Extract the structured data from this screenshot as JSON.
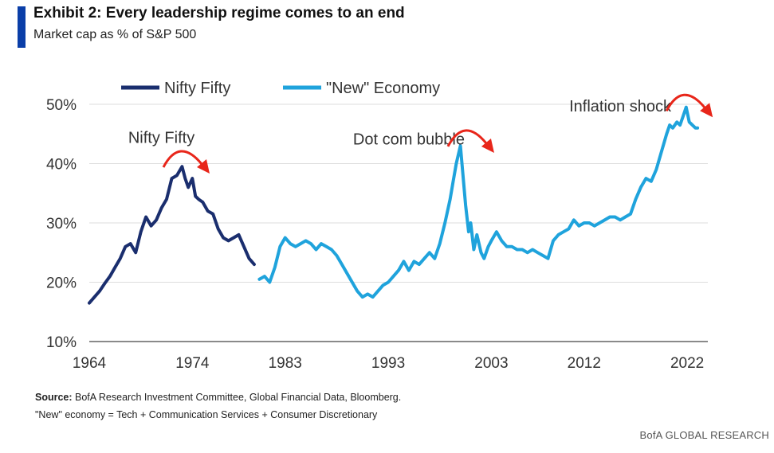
{
  "header": {
    "title": "Exhibit 2:  Every leadership regime comes to an end",
    "subtitle": "Market cap as % of S&P 500"
  },
  "footer": {
    "source_label": "Source:",
    "source_text": " BofA Research Investment Committee, Global Financial Data, Bloomberg.",
    "note": "\"New\" economy = Tech + Communication Services + Consumer Discretionary",
    "brand": "BofA GLOBAL RESEARCH"
  },
  "colors": {
    "nifty": "#1a2e6e",
    "new_economy": "#1fa3dc",
    "arrow": "#e8261a",
    "grid": "#dddddd",
    "accent": "#0a3ea8"
  },
  "chart_data": {
    "type": "line",
    "title": "Every leadership regime comes to an end",
    "ylabel": "Market cap as % of S&P 500",
    "ylim": [
      10,
      50
    ],
    "xlim": [
      1964,
      2024
    ],
    "yticks": [
      10,
      20,
      30,
      40,
      50
    ],
    "ytick_labels": [
      "10%",
      "20%",
      "30%",
      "40%",
      "50%"
    ],
    "xticks": [
      1964,
      1974,
      1983,
      1993,
      2003,
      2012,
      2022
    ],
    "xtick_labels": [
      "1964",
      "1974",
      "1983",
      "1993",
      "2003",
      "2012",
      "2022"
    ],
    "grid": "horizontal",
    "legend": {
      "placement": "top-left"
    },
    "series": [
      {
        "name": "Nifty Fifty",
        "color": "#1a2e6e",
        "x": [
          1964.0,
          1964.5,
          1965.0,
          1965.5,
          1966.0,
          1966.5,
          1967.0,
          1967.5,
          1968.0,
          1968.5,
          1969.0,
          1969.5,
          1970.0,
          1970.5,
          1971.0,
          1971.5,
          1972.0,
          1972.5,
          1973.0,
          1973.3,
          1973.6,
          1974.0,
          1974.3,
          1974.6,
          1975.0,
          1975.5,
          1976.0,
          1976.5,
          1977.0,
          1977.5,
          1978.0,
          1978.5,
          1979.0,
          1979.5,
          1980.0
        ],
        "y": [
          16.5,
          17.5,
          18.5,
          19.8,
          21.0,
          22.5,
          24.0,
          26.0,
          26.5,
          25.0,
          28.5,
          31.0,
          29.5,
          30.5,
          32.5,
          34.0,
          37.5,
          38.0,
          39.5,
          37.5,
          36.0,
          37.5,
          34.5,
          34.0,
          33.5,
          32.0,
          31.5,
          29.0,
          27.5,
          27.0,
          27.5,
          28.0,
          26.0,
          24.0,
          23.0
        ]
      },
      {
        "name": "\"New\" Economy",
        "color": "#1fa3dc",
        "x": [
          1980.5,
          1981.0,
          1981.5,
          1982.0,
          1982.5,
          1983.0,
          1983.5,
          1984.0,
          1984.5,
          1985.0,
          1985.5,
          1986.0,
          1986.5,
          1987.0,
          1987.5,
          1988.0,
          1988.5,
          1989.0,
          1989.5,
          1990.0,
          1990.5,
          1991.0,
          1991.5,
          1992.0,
          1992.5,
          1993.0,
          1993.5,
          1994.0,
          1994.5,
          1995.0,
          1995.5,
          1996.0,
          1996.5,
          1997.0,
          1997.5,
          1998.0,
          1998.5,
          1999.0,
          1999.3,
          1999.6,
          2000.0,
          2000.2,
          2000.5,
          2000.8,
          2001.0,
          2001.3,
          2001.6,
          2002.0,
          2002.3,
          2002.7,
          2003.0,
          2003.5,
          2004.0,
          2004.5,
          2005.0,
          2005.5,
          2006.0,
          2006.5,
          2007.0,
          2007.5,
          2008.0,
          2008.5,
          2009.0,
          2009.5,
          2010.0,
          2010.5,
          2011.0,
          2011.5,
          2012.0,
          2012.5,
          2013.0,
          2013.5,
          2014.0,
          2014.5,
          2015.0,
          2015.5,
          2016.0,
          2016.5,
          2017.0,
          2017.5,
          2018.0,
          2018.5,
          2019.0,
          2019.5,
          2020.0,
          2020.3,
          2020.6,
          2021.0,
          2021.3,
          2021.6,
          2021.9,
          2022.2,
          2022.5,
          2022.8,
          2023.0
        ],
        "y": [
          20.5,
          21.0,
          20.0,
          22.5,
          26.0,
          27.5,
          26.5,
          26.0,
          26.5,
          27.0,
          26.5,
          25.5,
          26.5,
          26.0,
          25.5,
          24.5,
          23.0,
          21.5,
          20.0,
          18.5,
          17.5,
          18.0,
          17.5,
          18.5,
          19.5,
          20.0,
          21.0,
          22.0,
          23.5,
          22.0,
          23.5,
          23.0,
          24.0,
          25.0,
          24.0,
          26.5,
          30.0,
          34.0,
          37.0,
          40.0,
          43.0,
          39.0,
          33.0,
          28.5,
          30.0,
          25.5,
          28.0,
          25.0,
          24.0,
          26.0,
          27.0,
          28.5,
          27.0,
          26.0,
          26.0,
          25.5,
          25.5,
          25.0,
          25.5,
          25.0,
          24.5,
          24.0,
          27.0,
          28.0,
          28.5,
          29.0,
          30.5,
          29.5,
          30.0,
          30.0,
          29.5,
          30.0,
          30.5,
          31.0,
          31.0,
          30.5,
          31.0,
          31.5,
          34.0,
          36.0,
          37.5,
          37.0,
          39.0,
          42.0,
          45.0,
          46.5,
          46.0,
          47.0,
          46.5,
          48.0,
          49.5,
          47.0,
          46.5,
          46.0,
          46.0
        ]
      }
    ],
    "annotations": [
      {
        "text": "Nifty Fifty",
        "x": 1971.0,
        "y": 43.5
      },
      {
        "text": "Dot com bubble",
        "x": 1995.0,
        "y": 43.2
      },
      {
        "text": "Inflation shock",
        "x": 2015.5,
        "y": 48.8
      }
    ],
    "peak_arrows": [
      {
        "x": 1973.2,
        "y": 41.0
      },
      {
        "x": 2000.8,
        "y": 44.5
      },
      {
        "x": 2022.0,
        "y": 50.5
      }
    ]
  }
}
